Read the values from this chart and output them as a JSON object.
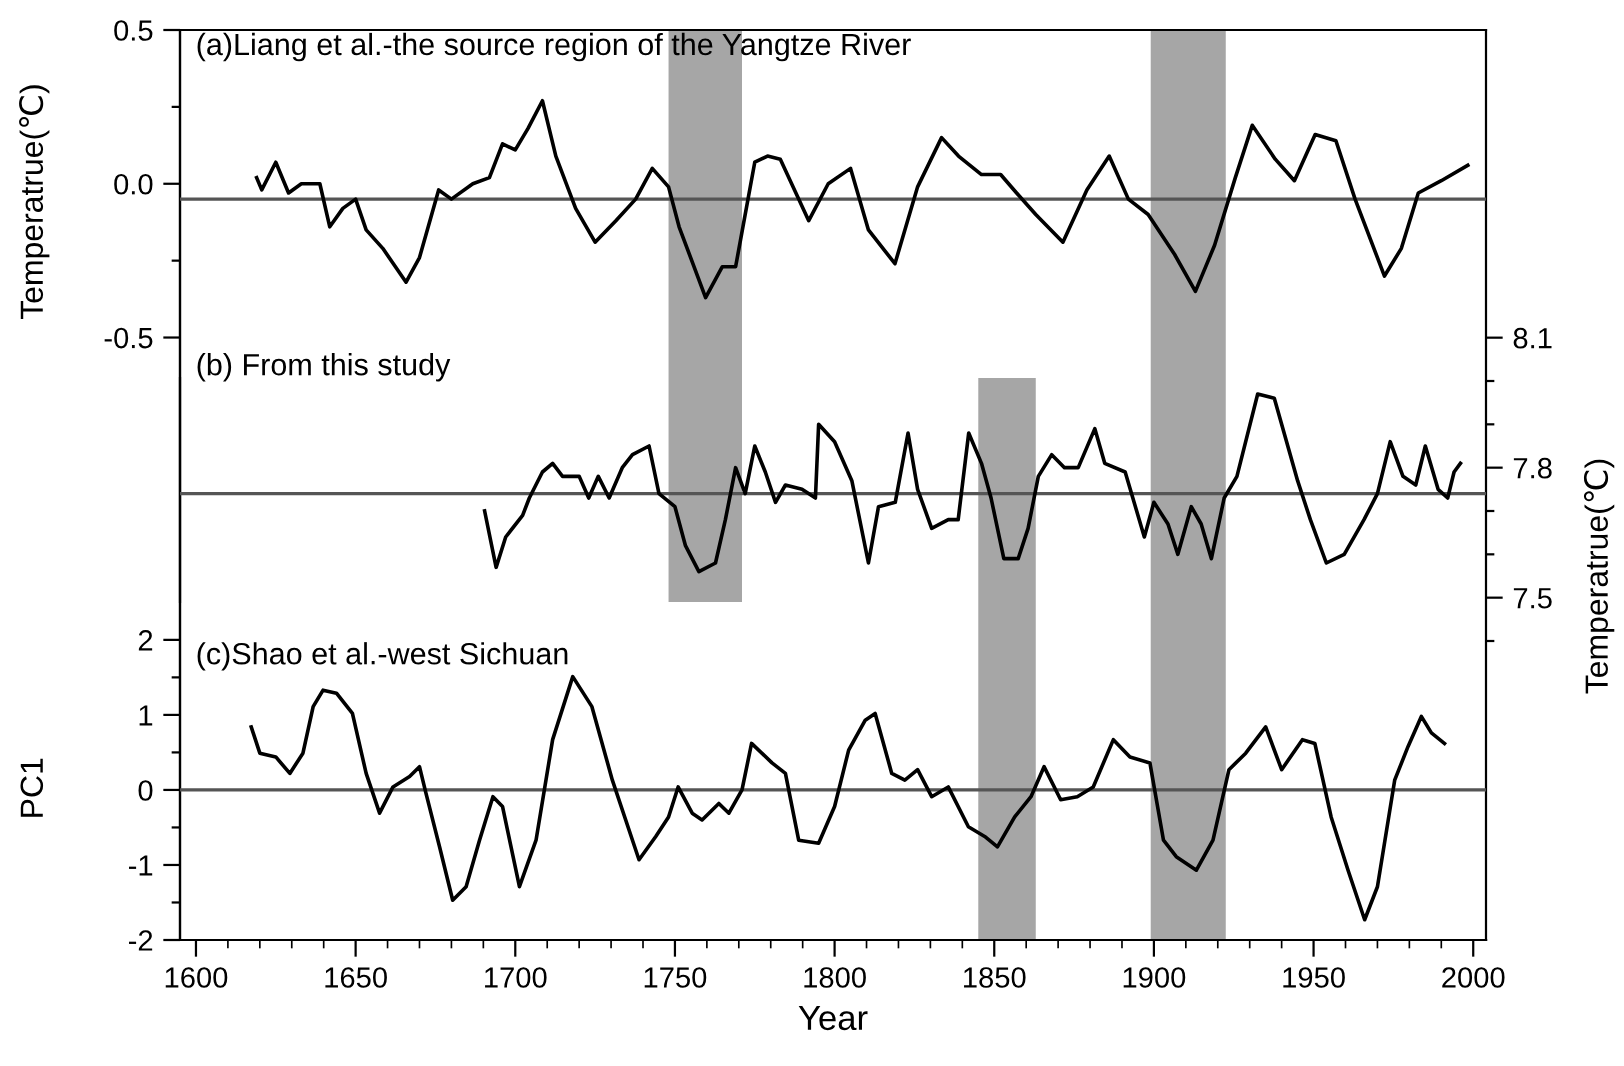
{
  "chart_data": [
    {
      "type": "line",
      "ylabel": "Temperatrue(℃)",
      "annotations": [
        "(a)Liang et al.-the source region of the Yangtze River"
      ],
      "tick_labels": "y",
      "grid": false,
      "legend": false,
      "xlim": [
        1595,
        2004
      ],
      "xticks": [
        1600,
        1650,
        1700,
        1750,
        1800,
        1850,
        1900,
        1950,
        2000
      ],
      "ylim": [
        -1.36,
        0.5
      ],
      "yticks": [
        0.5,
        {
          "value": 0.25,
          "label": null
        },
        {
          "value": 0.0,
          "label": "0.0"
        },
        {
          "value": -0.25,
          "label": null
        },
        -0.5
      ],
      "bands": [
        {
          "axis": "x",
          "from": 1748,
          "to": 1771,
          "color": "#a6a6a6"
        }
      ],
      "ref_lines": [
        {
          "axis": "y",
          "value": -0.05,
          "color": "#555555"
        }
      ],
      "series": [
        {
          "color": "#000000",
          "x": [
            1619,
            1620.6,
            1625,
            1629,
            1633,
            1638.8,
            1641.9,
            1646,
            1650,
            1653.3,
            1658.5,
            1665.8,
            1670,
            1676,
            1680,
            1686.7,
            1691.9,
            1696,
            1700,
            1704,
            1708.5,
            1712.7,
            1718.9,
            1725,
            1731.5,
            1737.7,
            1742.9,
            1748,
            1751.3,
            1759.6,
            1764.8,
            1769,
            1775,
            1779,
            1783,
            1791.9,
            1798,
            1805,
            1810.6,
            1818.9,
            1826,
            1833.5,
            1838.8,
            1846,
            1852,
            1857,
            1863,
            1871.5,
            1879,
            1886,
            1892,
            1898.2,
            1906.5,
            1913,
            1919,
            1925.5,
            1930.8,
            1938,
            1944,
            1950.5,
            1957,
            1963,
            1972.2,
            1977.5,
            1982.8,
            1990,
            1998.3
          ],
          "values": [
            0.02,
            -0.02,
            0.07,
            -0.03,
            0.0,
            0.0,
            -0.14,
            -0.08,
            -0.05,
            -0.15,
            -0.21,
            -0.32,
            -0.24,
            -0.02,
            -0.05,
            0.0,
            0.02,
            0.13,
            0.11,
            0.18,
            0.27,
            0.09,
            -0.08,
            -0.19,
            -0.12,
            -0.05,
            0.05,
            -0.01,
            -0.14,
            -0.37,
            -0.27,
            -0.27,
            0.07,
            0.09,
            0.08,
            -0.12,
            0.0,
            0.05,
            -0.15,
            -0.26,
            -0.01,
            0.15,
            0.09,
            0.03,
            0.03,
            -0.03,
            -0.1,
            -0.19,
            -0.02,
            0.09,
            -0.05,
            -0.1,
            -0.23,
            -0.35,
            -0.2,
            0.02,
            0.19,
            0.08,
            0.01,
            0.16,
            0.14,
            -0.05,
            -0.3,
            -0.21,
            -0.03,
            0.01,
            0.06
          ]
        }
      ]
    },
    {
      "type": "line",
      "y2label": "Temperatrue(℃)",
      "annotations": [
        "(b) From this study"
      ],
      "tick_labels": "y",
      "grid": false,
      "legend": false,
      "xlim": [
        1595,
        2004
      ],
      "xticks": [
        1600,
        1650,
        1700,
        1750,
        1800,
        1850,
        1900,
        1950,
        2000
      ],
      "y2lim": [
        6.71,
        8.81
      ],
      "y2ticks": [
        8.1,
        {
          "value": 8.0,
          "label": null
        },
        {
          "value": 7.9,
          "label": null
        },
        7.8,
        {
          "value": 7.7,
          "label": null
        },
        {
          "value": 7.6,
          "label": null
        },
        7.5,
        {
          "value": 7.4,
          "label": null
        }
      ],
      "bands": [
        {
          "axis": "x",
          "from": 1899,
          "to": 1922.5,
          "color": "#a6a6a6"
        }
      ],
      "ref_lines": [
        {
          "axis": "y2",
          "value": 7.74,
          "color": "#555555"
        }
      ],
      "series": [
        {
          "color": "#000000",
          "axis": "y2",
          "x": [
            1690.4,
            1694,
            1697,
            1702.3,
            1704.4,
            1708.5,
            1711.7,
            1714.8,
            1720,
            1723,
            1726,
            1729.4,
            1733.5,
            1736.7,
            1741.9,
            1745,
            1750,
            1753.3,
            1757.5,
            1762.7,
            1765.8,
            1769,
            1772,
            1775,
            1778.3,
            1781.5,
            1784.6,
            1789.8,
            1794,
            1795,
            1800,
            1805.4,
            1810.6,
            1813.75,
            1819,
            1823,
            1826,
            1830.4,
            1835.6,
            1838.7,
            1842,
            1846,
            1849,
            1853,
            1857.5,
            1860.6,
            1863.8,
            1868,
            1872,
            1876.3,
            1881.5,
            1884.6,
            1891,
            1897,
            1900,
            1904.4,
            1907.5,
            1911.7,
            1914.8,
            1918,
            1922,
            1926,
            1932.5,
            1937.7,
            1945,
            1949,
            1954,
            1959.6,
            1965.8,
            1970,
            1974,
            1978,
            1982,
            1985,
            1989,
            1992,
            1994,
            1996
          ],
          "values": [
            7.7,
            7.57,
            7.64,
            7.69,
            7.73,
            7.79,
            7.81,
            7.78,
            7.78,
            7.73,
            7.78,
            7.73,
            7.8,
            7.83,
            7.85,
            7.74,
            7.71,
            7.62,
            7.56,
            7.58,
            7.68,
            7.8,
            7.74,
            7.85,
            7.79,
            7.72,
            7.76,
            7.75,
            7.73,
            7.9,
            7.86,
            7.77,
            7.58,
            7.71,
            7.72,
            7.88,
            7.75,
            7.66,
            7.68,
            7.68,
            7.88,
            7.81,
            7.73,
            7.59,
            7.59,
            7.66,
            7.78,
            7.83,
            7.8,
            7.8,
            7.89,
            7.81,
            7.79,
            7.64,
            7.72,
            7.67,
            7.6,
            7.71,
            7.67,
            7.59,
            7.73,
            7.78,
            7.97,
            7.96,
            7.77,
            7.68,
            7.58,
            7.6,
            7.68,
            7.74,
            7.86,
            7.78,
            7.76,
            7.85,
            7.75,
            7.73,
            7.79,
            7.81
          ]
        }
      ]
    },
    {
      "type": "line",
      "xlabel": "Year",
      "ylabel": "PC1",
      "annotations": [
        "(c)Shao et al.-west Sichuan"
      ],
      "grid": false,
      "legend": false,
      "xlim": [
        1595,
        2004
      ],
      "xticks": [
        1600,
        1650,
        1700,
        1750,
        1800,
        1850,
        1900,
        1950,
        2000
      ],
      "ylim": [
        -2,
        5.49
      ],
      "yticks": [
        2,
        {
          "value": 1.5,
          "label": null
        },
        1,
        {
          "value": 0.5,
          "label": null
        },
        0,
        {
          "value": -0.5,
          "label": null
        },
        -1,
        {
          "value": -1.5,
          "label": null
        },
        -2
      ],
      "bands": [
        {
          "axis": "x",
          "from": 1845,
          "to": 1863,
          "color": "#a6a6a6"
        }
      ],
      "ref_lines": [
        {
          "axis": "y",
          "value": 0,
          "color": "#555555"
        }
      ],
      "series": [
        {
          "color": "#000000",
          "x": [
            1617.3,
            1620,
            1625,
            1629.4,
            1633.5,
            1636.7,
            1639.8,
            1644,
            1649,
            1653.3,
            1657.5,
            1661.7,
            1666.9,
            1670,
            1672,
            1676.3,
            1680.4,
            1684.6,
            1688.8,
            1693,
            1696,
            1701.3,
            1706.5,
            1711.7,
            1718,
            1724,
            1730.4,
            1738.75,
            1744,
            1748,
            1751,
            1755.4,
            1758.5,
            1763.75,
            1766.9,
            1771,
            1774,
            1780.4,
            1784.6,
            1788.75,
            1795,
            1800,
            1804.4,
            1809.6,
            1812.7,
            1817.9,
            1822,
            1826,
            1830.4,
            1835.6,
            1841.9,
            1847,
            1851,
            1856.4,
            1861.5,
            1865.6,
            1870.8,
            1876,
            1881,
            1887.3,
            1892.5,
            1898.75,
            1903,
            1907,
            1913.3,
            1918.5,
            1923.5,
            1928.75,
            1935,
            1940,
            1946.5,
            1950.4,
            1955.5,
            1960.8,
            1966,
            1970,
            1975.4,
            1979.6,
            1983.75,
            1986.9,
            1991
          ],
          "values": [
            0.84,
            0.49,
            0.44,
            0.22,
            0.49,
            1.11,
            1.33,
            1.29,
            1.02,
            0.22,
            -0.31,
            0.04,
            0.18,
            0.31,
            -0.04,
            -0.76,
            -1.47,
            -1.29,
            -0.67,
            -0.09,
            -0.22,
            -1.29,
            -0.67,
            0.67,
            1.51,
            1.11,
            0.13,
            -0.93,
            -0.62,
            -0.36,
            0.04,
            -0.31,
            -0.4,
            -0.18,
            -0.31,
            0.0,
            0.62,
            0.36,
            0.22,
            -0.67,
            -0.71,
            -0.22,
            0.53,
            0.93,
            1.02,
            0.22,
            0.13,
            0.27,
            -0.09,
            0.04,
            -0.49,
            -0.62,
            -0.76,
            -0.36,
            -0.09,
            0.31,
            -0.13,
            -0.09,
            0.04,
            0.67,
            0.44,
            0.36,
            -0.67,
            -0.89,
            -1.07,
            -0.67,
            0.27,
            0.49,
            0.84,
            0.27,
            0.67,
            0.62,
            -0.36,
            -1.07,
            -1.73,
            -1.29,
            0.13,
            0.58,
            0.98,
            0.76,
            0.62
          ]
        }
      ]
    }
  ]
}
